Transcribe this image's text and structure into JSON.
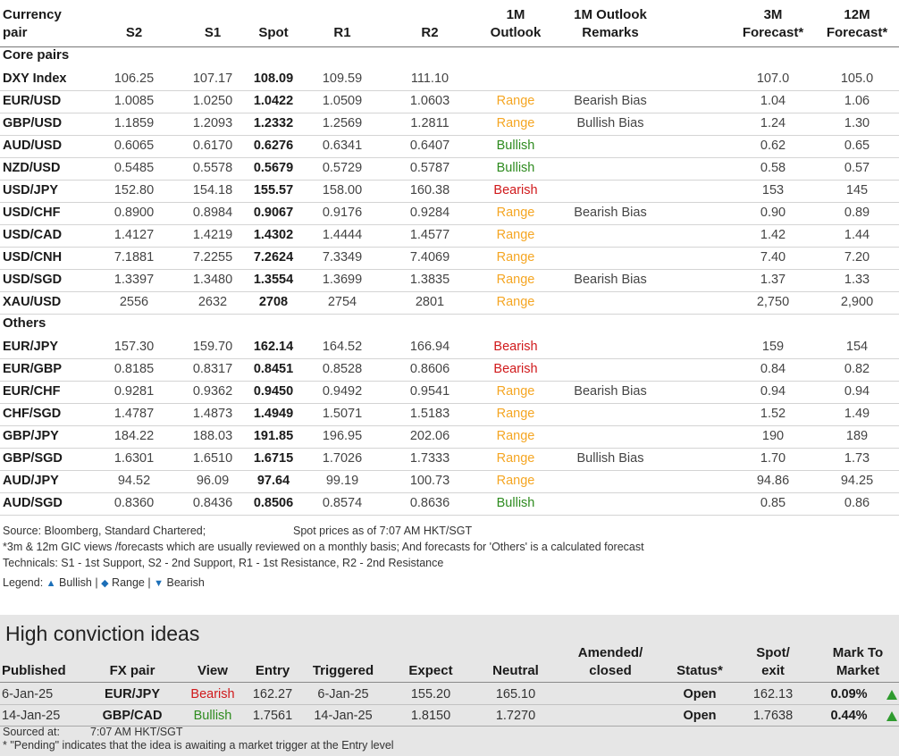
{
  "headers": {
    "pair": [
      "Currency",
      "pair"
    ],
    "s2": "S2",
    "s1": "S1",
    "spot": "Spot",
    "r1": "R1",
    "r2": "R2",
    "outlook": [
      "1M",
      "Outlook"
    ],
    "remarks": [
      "1M Outlook",
      "Remarks"
    ],
    "f3m": [
      "3M",
      "Forecast*"
    ],
    "f12m": [
      "12M",
      "Forecast*"
    ]
  },
  "sections": {
    "core": "Core pairs",
    "others": "Others"
  },
  "core_rows": [
    {
      "pair": "DXY Index",
      "s2": "106.25",
      "s1": "107.17",
      "spot": "108.09",
      "r1": "109.59",
      "r2": "111.10",
      "outlook": "",
      "remark": "",
      "f3m": "107.0",
      "f12m": "105.0"
    },
    {
      "pair": "EUR/USD",
      "s2": "1.0085",
      "s1": "1.0250",
      "spot": "1.0422",
      "r1": "1.0509",
      "r2": "1.0603",
      "outlook": "Range",
      "remark": "Bearish Bias",
      "f3m": "1.04",
      "f12m": "1.06"
    },
    {
      "pair": "GBP/USD",
      "s2": "1.1859",
      "s1": "1.2093",
      "spot": "1.2332",
      "r1": "1.2569",
      "r2": "1.2811",
      "outlook": "Range",
      "remark": "Bullish Bias",
      "f3m": "1.24",
      "f12m": "1.30"
    },
    {
      "pair": "AUD/USD",
      "s2": "0.6065",
      "s1": "0.6170",
      "spot": "0.6276",
      "r1": "0.6341",
      "r2": "0.6407",
      "outlook": "Bullish",
      "remark": "",
      "f3m": "0.62",
      "f12m": "0.65"
    },
    {
      "pair": "NZD/USD",
      "s2": "0.5485",
      "s1": "0.5578",
      "spot": "0.5679",
      "r1": "0.5729",
      "r2": "0.5787",
      "outlook": "Bullish",
      "remark": "",
      "f3m": "0.58",
      "f12m": "0.57"
    },
    {
      "pair": "USD/JPY",
      "s2": "152.80",
      "s1": "154.18",
      "spot": "155.57",
      "r1": "158.00",
      "r2": "160.38",
      "outlook": "Bearish",
      "remark": "",
      "f3m": "153",
      "f12m": "145"
    },
    {
      "pair": "USD/CHF",
      "s2": "0.8900",
      "s1": "0.8984",
      "spot": "0.9067",
      "r1": "0.9176",
      "r2": "0.9284",
      "outlook": "Range",
      "remark": "Bearish Bias",
      "f3m": "0.90",
      "f12m": "0.89"
    },
    {
      "pair": "USD/CAD",
      "s2": "1.4127",
      "s1": "1.4219",
      "spot": "1.4302",
      "r1": "1.4444",
      "r2": "1.4577",
      "outlook": "Range",
      "remark": "",
      "f3m": "1.42",
      "f12m": "1.44"
    },
    {
      "pair": "USD/CNH",
      "s2": "7.1881",
      "s1": "7.2255",
      "spot": "7.2624",
      "r1": "7.3349",
      "r2": "7.4069",
      "outlook": "Range",
      "remark": "",
      "f3m": "7.40",
      "f12m": "7.20"
    },
    {
      "pair": "USD/SGD",
      "s2": "1.3397",
      "s1": "1.3480",
      "spot": "1.3554",
      "r1": "1.3699",
      "r2": "1.3835",
      "outlook": "Range",
      "remark": "Bearish Bias",
      "f3m": "1.37",
      "f12m": "1.33"
    },
    {
      "pair": "XAU/USD",
      "s2": "2556",
      "s1": "2632",
      "spot": "2708",
      "r1": "2754",
      "r2": "2801",
      "outlook": "Range",
      "remark": "",
      "f3m": "2,750",
      "f12m": "2,900"
    }
  ],
  "other_rows": [
    {
      "pair": "EUR/JPY",
      "s2": "157.30",
      "s1": "159.70",
      "spot": "162.14",
      "r1": "164.52",
      "r2": "166.94",
      "outlook": "Bearish",
      "remark": "",
      "f3m": "159",
      "f12m": "154"
    },
    {
      "pair": "EUR/GBP",
      "s2": "0.8185",
      "s1": "0.8317",
      "spot": "0.8451",
      "r1": "0.8528",
      "r2": "0.8606",
      "outlook": "Bearish",
      "remark": "",
      "f3m": "0.84",
      "f12m": "0.82"
    },
    {
      "pair": "EUR/CHF",
      "s2": "0.9281",
      "s1": "0.9362",
      "spot": "0.9450",
      "r1": "0.9492",
      "r2": "0.9541",
      "outlook": "Range",
      "remark": "Bearish Bias",
      "f3m": "0.94",
      "f12m": "0.94"
    },
    {
      "pair": "CHF/SGD",
      "s2": "1.4787",
      "s1": "1.4873",
      "spot": "1.4949",
      "r1": "1.5071",
      "r2": "1.5183",
      "outlook": "Range",
      "remark": "",
      "f3m": "1.52",
      "f12m": "1.49"
    },
    {
      "pair": "GBP/JPY",
      "s2": "184.22",
      "s1": "188.03",
      "spot": "191.85",
      "r1": "196.95",
      "r2": "202.06",
      "outlook": "Range",
      "remark": "",
      "f3m": "190",
      "f12m": "189"
    },
    {
      "pair": "GBP/SGD",
      "s2": "1.6301",
      "s1": "1.6510",
      "spot": "1.6715",
      "r1": "1.7026",
      "r2": "1.7333",
      "outlook": "Range",
      "remark": "Bullish Bias",
      "f3m": "1.70",
      "f12m": "1.73"
    },
    {
      "pair": "AUD/JPY",
      "s2": "94.52",
      "s1": "96.09",
      "spot": "97.64",
      "r1": "99.19",
      "r2": "100.73",
      "outlook": "Range",
      "remark": "",
      "f3m": "94.86",
      "f12m": "94.25"
    },
    {
      "pair": "AUD/SGD",
      "s2": "0.8360",
      "s1": "0.8436",
      "spot": "0.8506",
      "r1": "0.8574",
      "r2": "0.8636",
      "outlook": "Bullish",
      "remark": "",
      "f3m": "0.85",
      "f12m": "0.86"
    }
  ],
  "notes": {
    "source": "Source: Bloomberg, Standard Chartered;",
    "spot_time": "Spot prices as of 7:07 AM HKT/SGT",
    "forecast_note": "*3m & 12m GIC views /forecasts which are usually reviewed on a monthly basis; And forecasts for 'Others' is a calculated forecast",
    "technicals": "Technicals: S1 - 1st Support, S2 - 2nd Support, R1 - 1st Resistance, R2 - 2nd Resistance",
    "legend_label": "Legend:",
    "legend_items": [
      "Bullish",
      "Range",
      "Bearish"
    ],
    "legend_separator": "|"
  },
  "legend_icons": [
    "triangle-up-icon",
    "diamond-icon",
    "triangle-down-icon"
  ],
  "high_conviction": {
    "title": "High conviction ideas",
    "headers": {
      "published": "Published",
      "pair": "FX pair",
      "view": "View",
      "entry": "Entry",
      "triggered": "Triggered",
      "expect": "Expect",
      "neutral": "Neutral",
      "amended": [
        "Amended/",
        "closed"
      ],
      "status": "Status*",
      "spot": [
        "Spot/",
        "exit"
      ],
      "mtm": [
        "Mark To",
        "Market"
      ]
    },
    "rows": [
      {
        "published": "6-Jan-25",
        "pair": "EUR/JPY",
        "view": "Bearish",
        "entry": "162.27",
        "triggered": "6-Jan-25",
        "expect": "155.20",
        "neutral": "165.10",
        "amended": "",
        "status": "Open",
        "spot": "162.13",
        "mtm": "0.09%",
        "trend_icon": "triangle-up-icon"
      },
      {
        "published": "14-Jan-25",
        "pair": "GBP/CAD",
        "view": "Bullish",
        "entry": "1.7561",
        "triggered": "14-Jan-25",
        "expect": "1.8150",
        "neutral": "1.7270",
        "amended": "",
        "status": "Open",
        "spot": "1.7638",
        "mtm": "0.44%",
        "trend_icon": "triangle-up-icon"
      }
    ],
    "sourced_label": "Sourced at:",
    "sourced_time": "7:07 AM HKT/SGT",
    "pending_note": "* \"Pending\" indicates that the idea is awaiting a market trigger at the Entry level"
  },
  "colors": {
    "range": "#f5a623",
    "bullish": "#2e8b1f",
    "bearish": "#d0191b",
    "panel_bg": "#e6e6e6",
    "legend_icon": "#1c6fb8"
  }
}
